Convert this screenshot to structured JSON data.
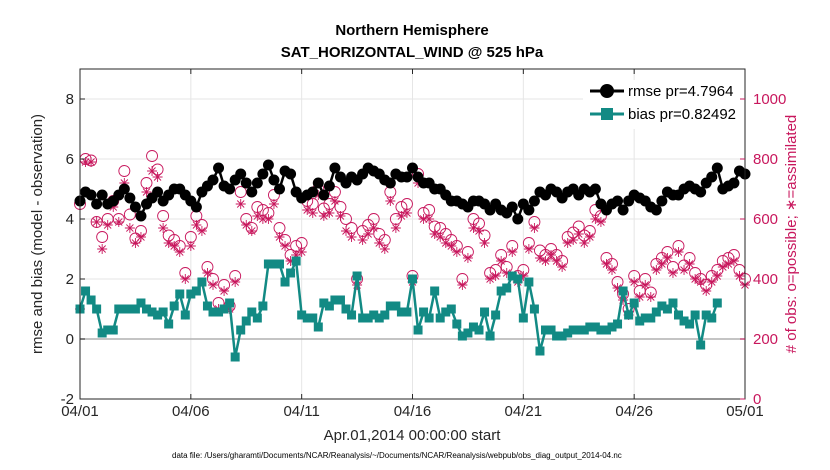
{
  "chart_data": {
    "type": "line",
    "title_line1": "Northern Hemisphere",
    "title_line2": "SAT_HORIZONTAL_WIND @ 525 hPa",
    "xlabel": "Apr.01,2014 00:00:00 start",
    "ylabel_left": "rmse and bias (model - observation)",
    "ylabel_right": "# of obs: o=possible; ∗=assimilated",
    "footnote": "data file: /Users/gharamti/Documents/NCAR/Reanalysis/~/Documents/NCAR/Reanalysis/webpub/obs_diag_output_2014-04.nc",
    "xlim": [
      0,
      120
    ],
    "ylim_left": [
      -2,
      9
    ],
    "ylim_right": [
      0,
      1100
    ],
    "x_ticks": [
      {
        "value": 0,
        "label": "04/01"
      },
      {
        "value": 20,
        "label": "04/06"
      },
      {
        "value": 40,
        "label": "04/11"
      },
      {
        "value": 60,
        "label": "04/16"
      },
      {
        "value": 80,
        "label": "04/21"
      },
      {
        "value": 100,
        "label": "04/26"
      },
      {
        "value": 120,
        "label": "05/01"
      }
    ],
    "y_left_ticks": [
      "-2",
      "0",
      "2",
      "4",
      "6",
      "8"
    ],
    "y_right_ticks": [
      "0",
      "200",
      "400",
      "600",
      "800",
      "1000"
    ],
    "legend": [
      {
        "name": "rmse pr=4.7964",
        "color": "#000000",
        "marker": "circle"
      },
      {
        "name": "bias pr=0.82492",
        "color": "#128a84",
        "marker": "square"
      }
    ],
    "colors": {
      "rmse": "#000000",
      "bias": "#128a84",
      "obs": "#c8175d",
      "zero_line": "#b0b0b0"
    },
    "series": [
      {
        "name": "rmse",
        "x_start": 0,
        "x_step": 1,
        "values": [
          4.6,
          4.9,
          4.8,
          4.5,
          4.8,
          4.5,
          4.6,
          4.8,
          5.0,
          4.7,
          4.4,
          4.1,
          4.5,
          4.7,
          4.9,
          4.6,
          4.8,
          5.0,
          5.0,
          4.8,
          4.6,
          4.4,
          4.9,
          5.1,
          5.3,
          5.7,
          5.1,
          5.0,
          5.3,
          5.5,
          5.2,
          4.9,
          5.2,
          5.5,
          5.8,
          5.3,
          5.0,
          5.6,
          5.5,
          4.9,
          4.7,
          4.8,
          4.9,
          5.2,
          4.8,
          5.1,
          5.7,
          5.4,
          5.2,
          5.4,
          5.3,
          5.5,
          5.7,
          5.6,
          5.5,
          5.3,
          5.2,
          5.5,
          5.4,
          5.4,
          5.7,
          5.4,
          5.2,
          5.2,
          5.0,
          5.0,
          4.8,
          4.6,
          4.6,
          4.5,
          4.4,
          4.6,
          4.6,
          4.5,
          4.3,
          4.5,
          4.3,
          4.2,
          4.4,
          4.0,
          4.5,
          4.3,
          4.6,
          4.9,
          4.8,
          5.0,
          4.9,
          4.7,
          4.9,
          5.0,
          4.8,
          5.0,
          4.9,
          5.0,
          4.5,
          4.3,
          4.5,
          4.6,
          4.3,
          4.6,
          4.8,
          4.7,
          4.6,
          4.4,
          4.3,
          4.6,
          4.9,
          4.8,
          4.8,
          5.0,
          5.1,
          5.0,
          4.9,
          5.2,
          5.4,
          5.7,
          5.0,
          5.1,
          5.2,
          5.6,
          5.5
        ]
      },
      {
        "name": "bias",
        "x_start": 0,
        "x_step": 1,
        "values": [
          1.0,
          1.6,
          1.3,
          1.0,
          0.2,
          0.3,
          0.3,
          1.0,
          1.0,
          1.0,
          1.0,
          1.2,
          1.0,
          0.9,
          0.8,
          0.9,
          0.5,
          1.1,
          1.5,
          0.8,
          1.5,
          1.6,
          1.9,
          1.1,
          0.9,
          0.9,
          1.0,
          1.2,
          -0.6,
          0.3,
          0.6,
          0.9,
          0.7,
          1.1,
          2.5,
          2.5,
          2.5,
          1.9,
          2.2,
          2.6,
          0.8,
          0.7,
          0.7,
          0.4,
          1.2,
          1.1,
          1.3,
          1.3,
          1.0,
          0.8,
          2.1,
          0.7,
          0.7,
          0.8,
          0.7,
          0.8,
          1.1,
          1.1,
          0.9,
          0.9,
          2.0,
          0.3,
          0.9,
          0.7,
          1.6,
          0.7,
          0.9,
          1.0,
          0.5,
          0.1,
          0.2,
          0.4,
          0.3,
          0.9,
          0.1,
          0.8,
          1.6,
          1.7,
          2.1,
          2.0,
          0.7,
          1.9,
          1.0,
          -0.4,
          0.3,
          0.3,
          0.1,
          0.1,
          0.2,
          0.3,
          0.3,
          0.3,
          0.4,
          0.4,
          0.3,
          0.3,
          0.4,
          0.5,
          1.6,
          0.8,
          1.2,
          0.6,
          0.7,
          0.7,
          0.9,
          1.1,
          1.0,
          1.2,
          0.8,
          0.6,
          0.5,
          0.8,
          -0.2,
          0.8,
          0.7,
          1.2
        ]
      },
      {
        "name": "obs_possible",
        "x_start": 0,
        "x_step": 1,
        "values": [
          650,
          800,
          795,
          590,
          540,
          600,
          660,
          600,
          760,
          615,
          535,
          560,
          720,
          810,
          765,
          610,
          545,
          530,
          510,
          420,
          540,
          610,
          580,
          440,
          400,
          320,
          380,
          310,
          410,
          690,
          600,
          570,
          640,
          630,
          620,
          680,
          570,
          530,
          480,
          510,
          520,
          660,
          650,
          700,
          635,
          650,
          690,
          640,
          600,
          570,
          400,
          560,
          580,
          600,
          550,
          530,
          690,
          600,
          640,
          650,
          410,
          750,
          620,
          630,
          575,
          570,
          550,
          530,
          510,
          400,
          490,
          600,
          585,
          545,
          420,
          430,
          480,
          440,
          510,
          410,
          430,
          520,
          590,
          495,
          480,
          500,
          480,
          460,
          540,
          555,
          575,
          545,
          560,
          630,
          610,
          470,
          450,
          390,
          350,
          300,
          410,
          360,
          400,
          355,
          450,
          470,
          490,
          440,
          510,
          445,
          470,
          420,
          400,
          380,
          410,
          430,
          460,
          470,
          480,
          430,
          400
        ]
      },
      {
        "name": "obs_assimilated",
        "x_start": 0,
        "x_step": 1,
        "values": [
          300,
          790,
          790,
          590,
          500,
          580,
          640,
          590,
          720,
          570,
          520,
          540,
          690,
          760,
          740,
          570,
          520,
          510,
          490,
          400,
          510,
          580,
          560,
          420,
          380,
          300,
          360,
          300,
          390,
          650,
          580,
          560,
          610,
          600,
          600,
          650,
          540,
          510,
          460,
          480,
          490,
          630,
          620,
          680,
          610,
          620,
          660,
          610,
          560,
          540,
          380,
          530,
          550,
          570,
          520,
          500,
          660,
          570,
          610,
          620,
          390,
          720,
          600,
          600,
          550,
          540,
          520,
          510,
          490,
          380,
          470,
          570,
          560,
          520,
          400,
          410,
          460,
          420,
          490,
          390,
          410,
          500,
          570,
          470,
          460,
          480,
          460,
          440,
          520,
          530,
          550,
          520,
          540,
          600,
          590,
          450,
          430,
          370,
          330,
          280,
          390,
          340,
          380,
          340,
          430,
          450,
          470,
          420,
          490,
          430,
          450,
          400,
          390,
          360,
          390,
          410,
          440,
          450,
          460,
          410,
          380
        ]
      }
    ]
  }
}
